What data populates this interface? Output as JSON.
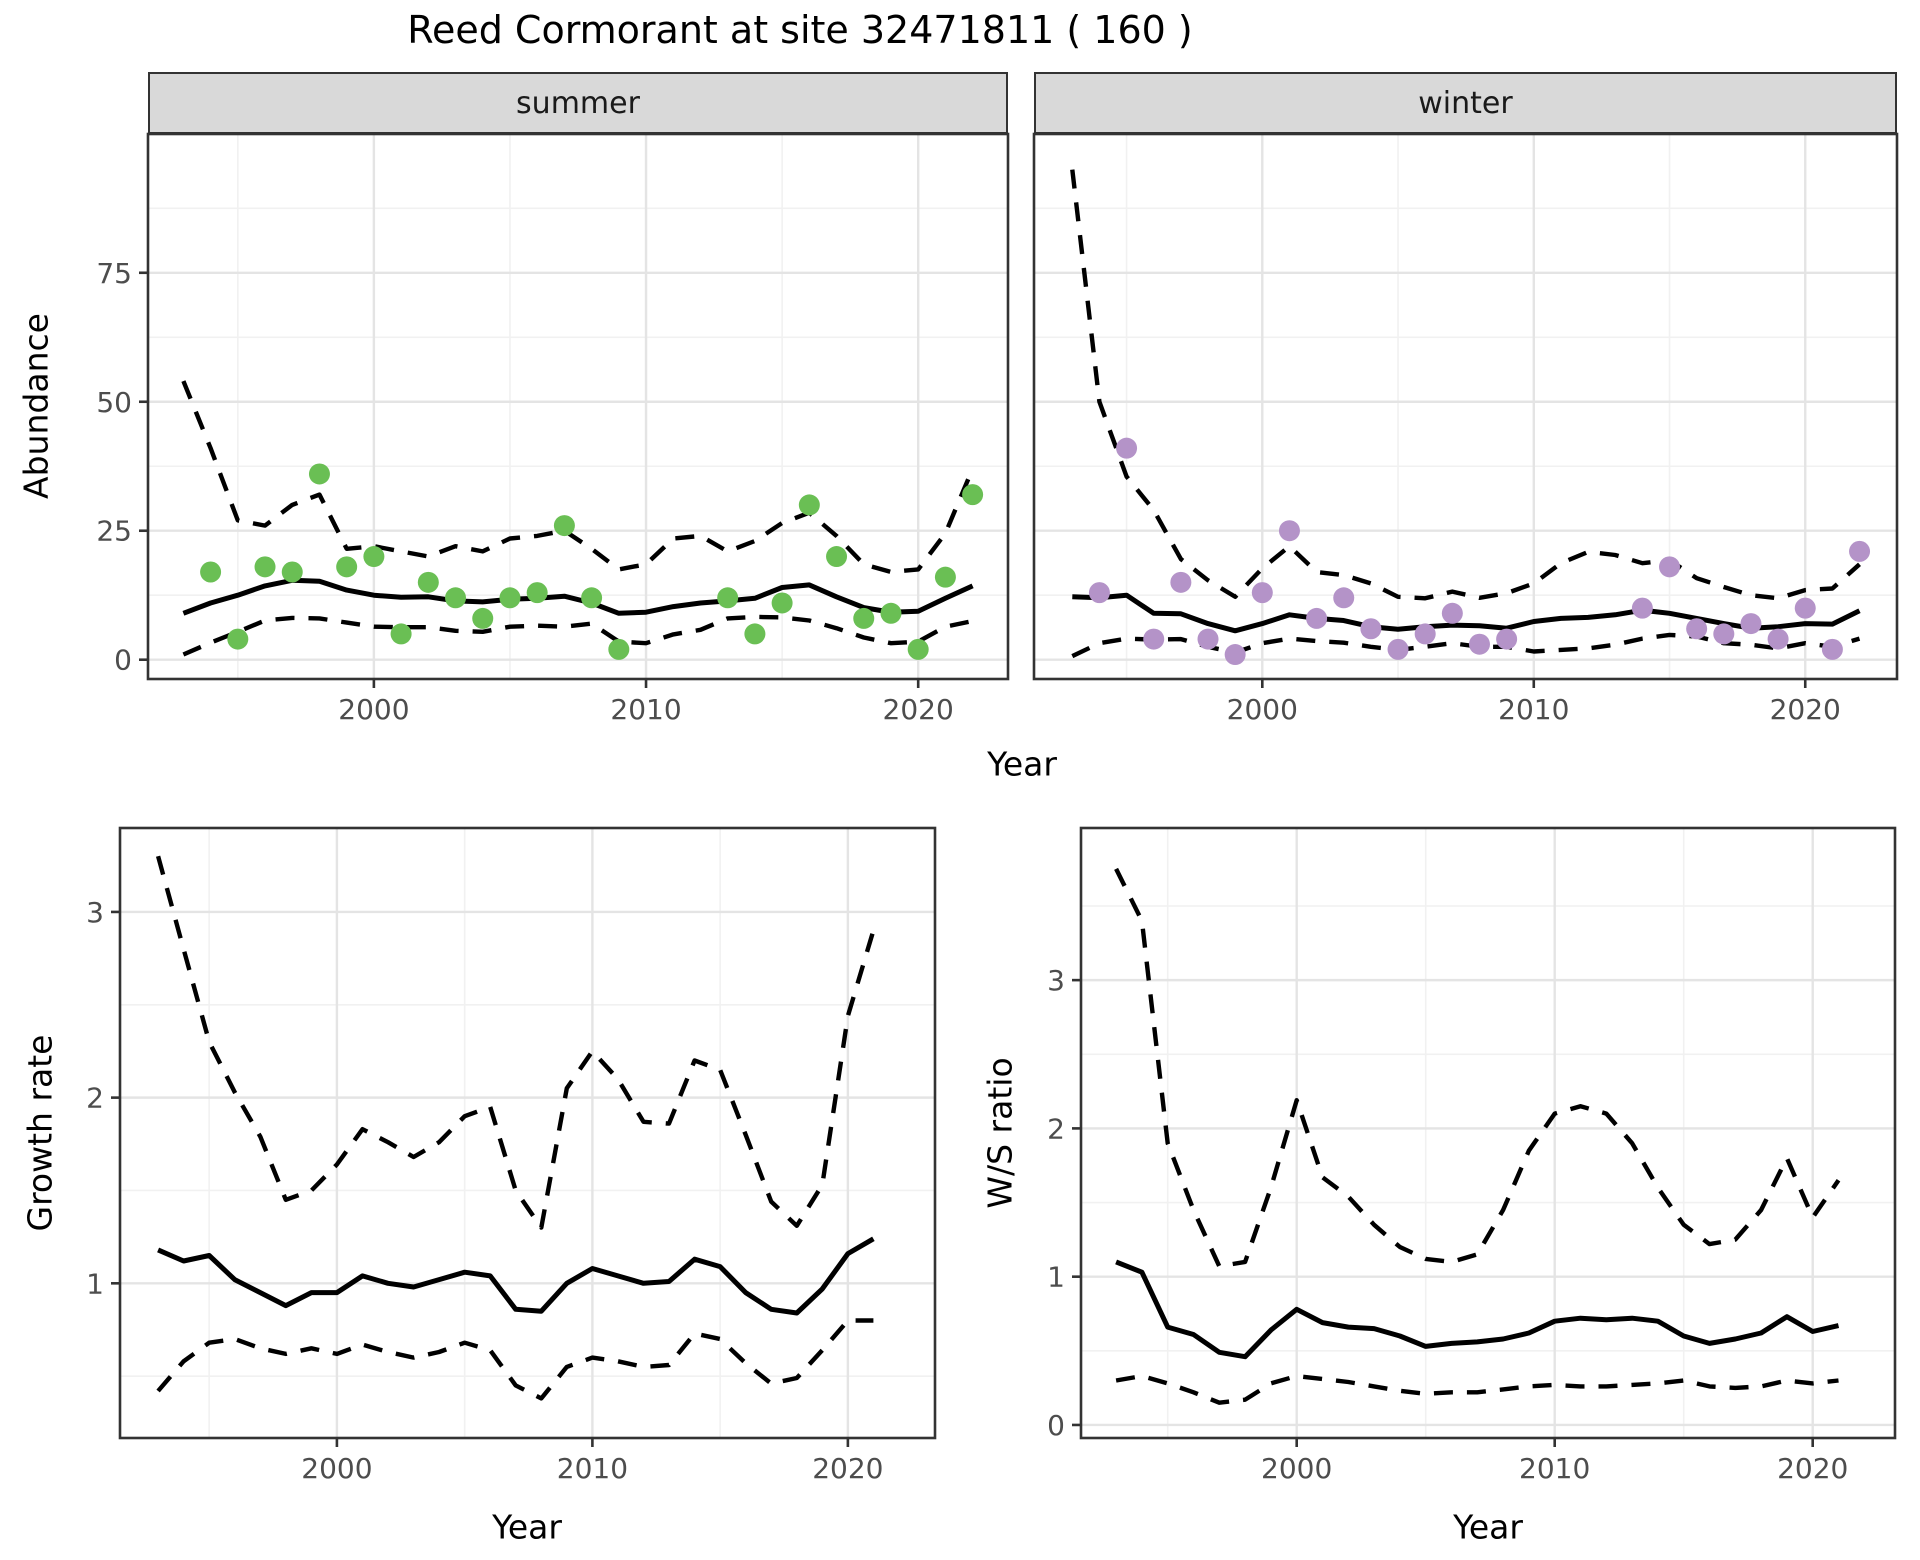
{
  "title": "Reed Cormorant at site 32471811 ( 160 )",
  "colors": {
    "summer_point": "#6abf54",
    "winter_point": "#b493c8",
    "line": "#000000",
    "strip_bg": "#d9d9d9",
    "panel_border": "#333333",
    "grid_major": "#e4e4e4",
    "grid_minor": "#f1f1f1",
    "tick_label": "#4d4d4d"
  },
  "chart_data": [
    {
      "id": "abundance-summer",
      "type": "line",
      "facet": "summer",
      "ylabel": "Abundance",
      "xlabel": "Year",
      "x_ticks": [
        2000,
        2010,
        2020
      ],
      "y_ticks": [
        0,
        25,
        50,
        75
      ],
      "xlim": [
        1991.7,
        2023.3
      ],
      "ylim": [
        -3.74,
        101.9
      ],
      "grid": true,
      "legend": "none",
      "point_color": "#6abf54",
      "x": [
        1993,
        1994,
        1995,
        1996,
        1997,
        1998,
        1999,
        2000,
        2001,
        2002,
        2003,
        2004,
        2005,
        2006,
        2007,
        2008,
        2009,
        2010,
        2011,
        2012,
        2013,
        2014,
        2015,
        2016,
        2017,
        2018,
        2019,
        2020,
        2021,
        2022
      ],
      "series": [
        {
          "name": "mean",
          "style": "solid",
          "values": [
            9,
            11,
            12.5,
            14.3,
            15.4,
            15.2,
            13.5,
            12.5,
            12.1,
            12.2,
            11.4,
            11.2,
            11.7,
            11.9,
            12.3,
            11,
            9,
            9.2,
            10.3,
            11,
            11.4,
            11.9,
            14,
            14.5,
            12.2,
            10.1,
            9.2,
            9.4,
            11.9,
            14.3
          ]
        },
        {
          "name": "upper_ci",
          "style": "dashed",
          "values": [
            54,
            41,
            27,
            26,
            30,
            32,
            21.5,
            22,
            21,
            20,
            22,
            21,
            23.5,
            24,
            25,
            21.5,
            17.5,
            18.5,
            23.5,
            24,
            21,
            23,
            26.5,
            28.5,
            24,
            18.5,
            17,
            17.5,
            24.5,
            37
          ]
        },
        {
          "name": "lower_ci",
          "style": "dashed",
          "values": [
            1,
            3.3,
            5.4,
            7.6,
            8.1,
            8,
            7.2,
            6.4,
            6.3,
            6.3,
            5.6,
            5.4,
            6.4,
            6.6,
            6.4,
            7,
            3.5,
            3.2,
            4.9,
            5.8,
            8,
            8.3,
            8.2,
            7.6,
            6.1,
            4.3,
            3.2,
            3.5,
            6.4,
            7.5
          ]
        }
      ],
      "points": {
        "x": [
          1994,
          1995,
          1996,
          1997,
          1998,
          1999,
          2000,
          2001,
          2002,
          2003,
          2004,
          2005,
          2006,
          2007,
          2008,
          2009,
          2013,
          2014,
          2015,
          2016,
          2017,
          2018,
          2019,
          2020,
          2021,
          2022
        ],
        "y": [
          17,
          4,
          18,
          17,
          36,
          18,
          20,
          5,
          15,
          12,
          8,
          12,
          13,
          26,
          12,
          2,
          12,
          5,
          11,
          30,
          20,
          8,
          9,
          2,
          16,
          32
        ]
      }
    },
    {
      "id": "abundance-winter",
      "type": "line",
      "facet": "winter",
      "ylabel": "Abundance",
      "xlabel": "Year",
      "x_ticks": [
        2000,
        2010,
        2020
      ],
      "y_ticks": [
        0,
        25,
        50,
        75
      ],
      "xlim": [
        1991.59,
        2023.38
      ],
      "ylim": [
        -3.74,
        101.9
      ],
      "grid": true,
      "legend": "none",
      "point_color": "#b493c8",
      "x": [
        1993,
        1994,
        1995,
        1996,
        1997,
        1998,
        1999,
        2000,
        2001,
        2002,
        2003,
        2004,
        2005,
        2006,
        2007,
        2008,
        2009,
        2010,
        2011,
        2012,
        2013,
        2014,
        2015,
        2016,
        2017,
        2018,
        2019,
        2020,
        2021,
        2022
      ],
      "series": [
        {
          "name": "mean",
          "style": "solid",
          "values": [
            12.2,
            12,
            12.5,
            9,
            8.9,
            7,
            5.6,
            7,
            8.7,
            8,
            7.6,
            6.4,
            5.9,
            6.4,
            6.7,
            6.6,
            6.1,
            7.4,
            8,
            8.2,
            8.7,
            9.6,
            9,
            8,
            7,
            6.1,
            6.4,
            7,
            6.9,
            9.5
          ]
        },
        {
          "name": "upper_ci",
          "style": "dashed",
          "values": [
            95,
            50,
            35.5,
            29,
            19.5,
            15.4,
            12.2,
            17.7,
            22,
            17,
            16.4,
            14.8,
            12.2,
            11.9,
            13.2,
            12,
            12.9,
            14.8,
            18.7,
            20.9,
            20.3,
            18.7,
            19.3,
            15.8,
            14.1,
            12.5,
            11.9,
            13.5,
            13.8,
            18.5
          ]
        },
        {
          "name": "lower_ci",
          "style": "dashed",
          "values": [
            0.7,
            3.2,
            4.1,
            3.9,
            4,
            2.5,
            1.4,
            3.2,
            4.1,
            3.6,
            3.3,
            2.5,
            1.9,
            2.5,
            3.2,
            2.5,
            2.5,
            1.6,
            1.9,
            2.2,
            2.9,
            4.1,
            4.8,
            4.5,
            3.2,
            2.9,
            2.2,
            3.2,
            2.5,
            4.1
          ]
        }
      ],
      "points": {
        "x": [
          1994,
          1995,
          1996,
          1997,
          1998,
          1999,
          2000,
          2001,
          2002,
          2003,
          2004,
          2005,
          2006,
          2007,
          2008,
          2009,
          2014,
          2015,
          2016,
          2017,
          2018,
          2019,
          2020,
          2021,
          2022
        ],
        "y": [
          13,
          41,
          4,
          15,
          4,
          1,
          13,
          25,
          8,
          12,
          6,
          2,
          5,
          9,
          3,
          4,
          10,
          18,
          6,
          5,
          7,
          4,
          10,
          2,
          21
        ]
      }
    },
    {
      "id": "growth-rate",
      "type": "line",
      "facet": "",
      "ylabel": "Growth rate",
      "xlabel": "Year",
      "x_ticks": [
        2000,
        2010,
        2020
      ],
      "y_ticks": [
        1,
        2,
        3
      ],
      "xlim": [
        1991.51,
        2023.41
      ],
      "ylim": [
        0.167,
        3.452
      ],
      "grid": true,
      "legend": "none",
      "point_color": null,
      "x": [
        1993,
        1994,
        1995,
        1996,
        1997,
        1998,
        1999,
        2000,
        2001,
        2002,
        2003,
        2004,
        2005,
        2006,
        2007,
        2008,
        2009,
        2010,
        2011,
        2012,
        2013,
        2014,
        2015,
        2016,
        2017,
        2018,
        2019,
        2020,
        2021
      ],
      "series": [
        {
          "name": "mean",
          "style": "solid",
          "values": [
            1.18,
            1.12,
            1.15,
            1.02,
            0.95,
            0.88,
            0.95,
            0.95,
            1.04,
            1,
            0.98,
            1.02,
            1.06,
            1.04,
            0.86,
            0.85,
            1,
            1.08,
            1.04,
            1,
            1.01,
            1.13,
            1.09,
            0.95,
            0.86,
            0.84,
            0.97,
            1.16,
            1.24
          ]
        },
        {
          "name": "upper_ci",
          "style": "dashed",
          "values": [
            3.3,
            2.8,
            2.3,
            2.03,
            1.79,
            1.45,
            1.5,
            1.64,
            1.83,
            1.76,
            1.68,
            1.76,
            1.9,
            1.95,
            1.5,
            1.3,
            2.05,
            2.25,
            2.1,
            1.87,
            1.86,
            2.2,
            2.15,
            1.8,
            1.44,
            1.31,
            1.53,
            2.44,
            2.9
          ]
        },
        {
          "name": "lower_ci",
          "style": "dashed",
          "values": [
            0.42,
            0.58,
            0.68,
            0.7,
            0.65,
            0.62,
            0.65,
            0.62,
            0.67,
            0.63,
            0.6,
            0.63,
            0.68,
            0.64,
            0.45,
            0.38,
            0.55,
            0.6,
            0.58,
            0.55,
            0.56,
            0.73,
            0.7,
            0.57,
            0.46,
            0.49,
            0.64,
            0.8,
            0.8
          ]
        }
      ],
      "points": {
        "x": [],
        "y": []
      }
    },
    {
      "id": "ws-ratio",
      "type": "line",
      "facet": "",
      "ylabel": "W/S ratio",
      "xlabel": "Year",
      "x_ticks": [
        2000,
        2010,
        2020
      ],
      "y_ticks": [
        0,
        1,
        2,
        3
      ],
      "xlim": [
        1991.64,
        2023.19
      ],
      "ylim": [
        -0.088,
        4.026
      ],
      "grid": true,
      "legend": "none",
      "point_color": null,
      "x": [
        1993,
        1994,
        1995,
        1996,
        1997,
        1998,
        1999,
        2000,
        2001,
        2002,
        2003,
        2004,
        2005,
        2006,
        2007,
        2008,
        2009,
        2010,
        2011,
        2012,
        2013,
        2014,
        2015,
        2016,
        2017,
        2018,
        2019,
        2020,
        2021
      ],
      "series": [
        {
          "name": "mean",
          "style": "solid",
          "values": [
            1.1,
            1.03,
            0.66,
            0.61,
            0.49,
            0.46,
            0.64,
            0.78,
            0.69,
            0.66,
            0.65,
            0.6,
            0.53,
            0.55,
            0.56,
            0.58,
            0.62,
            0.7,
            0.72,
            0.71,
            0.72,
            0.7,
            0.6,
            0.55,
            0.58,
            0.62,
            0.73,
            0.63,
            0.67
          ]
        },
        {
          "name": "upper_ci",
          "style": "dashed",
          "values": [
            3.75,
            3.4,
            1.9,
            1.45,
            1.07,
            1.1,
            1.6,
            2.19,
            1.67,
            1.54,
            1.35,
            1.2,
            1.12,
            1.1,
            1.15,
            1.45,
            1.85,
            2.1,
            2.15,
            2.1,
            1.9,
            1.6,
            1.35,
            1.22,
            1.25,
            1.45,
            1.8,
            1.4,
            1.65
          ]
        },
        {
          "name": "lower_ci",
          "style": "dashed",
          "values": [
            0.3,
            0.33,
            0.28,
            0.22,
            0.15,
            0.17,
            0.28,
            0.33,
            0.31,
            0.29,
            0.26,
            0.23,
            0.21,
            0.22,
            0.22,
            0.24,
            0.26,
            0.27,
            0.26,
            0.26,
            0.27,
            0.28,
            0.3,
            0.26,
            0.25,
            0.26,
            0.3,
            0.28,
            0.3
          ]
        }
      ],
      "points": {
        "x": [],
        "y": []
      }
    }
  ]
}
